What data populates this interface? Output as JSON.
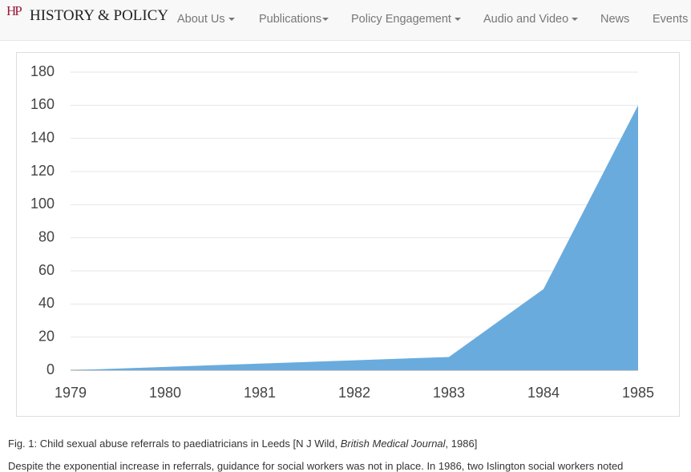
{
  "nav": {
    "logo_mark": "HP",
    "logo_text": "HISTORY & POLICY",
    "items": [
      "About Us",
      "Publications",
      "Policy Engagement",
      "Audio and Video",
      "News",
      "Events"
    ]
  },
  "chart_data": {
    "type": "area",
    "x": [
      1979,
      1980,
      1981,
      1982,
      1983,
      1984,
      1985
    ],
    "xlim": [
      1979,
      1985
    ],
    "series": [
      {
        "name": "Referrals",
        "color": "#6aabdd",
        "values": [
          0,
          2,
          4,
          6,
          8,
          49,
          160
        ]
      }
    ],
    "ylim": [
      0,
      180
    ],
    "yticks": [
      0,
      20,
      40,
      60,
      80,
      100,
      120,
      140,
      160,
      180
    ],
    "grid": true
  },
  "caption": {
    "prefix": "Fig. 1: Child sexual abuse referrals to paediatricians in Leeds [N J Wild,",
    "journal": "British Medical Journal",
    "suffix": ", 1986]"
  },
  "body_text": "Despite the exponential increase in referrals, guidance for social workers was not in place. In 1986, two Islington social workers noted"
}
